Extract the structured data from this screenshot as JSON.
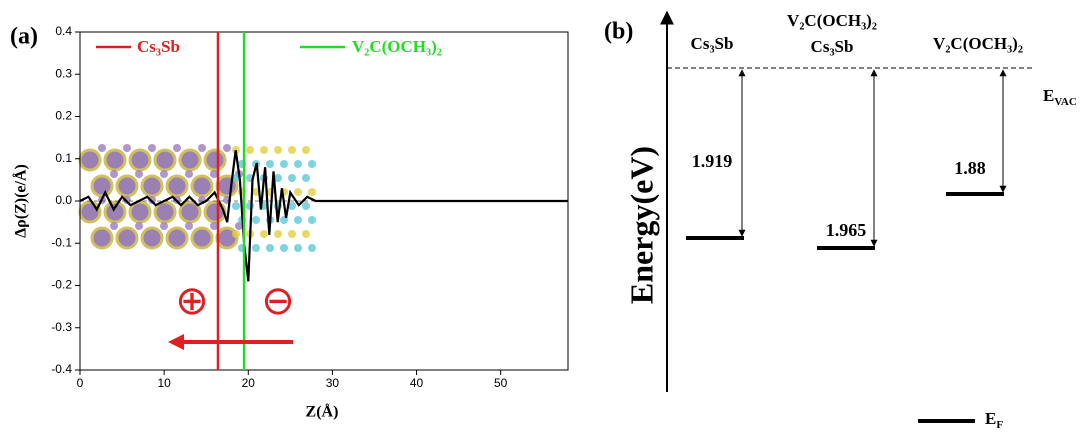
{
  "chart_data": [
    {
      "type": "line",
      "panel": "(a)",
      "xlabel": "Z(Å)",
      "ylabel": "Δρ(Z)(e/Å)",
      "x": [
        0,
        1,
        2,
        3,
        4,
        5,
        6,
        7,
        8,
        9,
        10,
        11,
        12,
        13,
        14,
        15,
        16,
        17,
        17.5,
        18,
        18.5,
        19,
        19.5,
        20,
        20.5,
        21,
        21.5,
        22,
        22.5,
        23,
        23.5,
        24,
        24.5,
        25,
        26,
        27,
        28,
        30,
        40,
        50,
        58
      ],
      "values": [
        0,
        0.01,
        -0.02,
        0.02,
        -0.02,
        0.01,
        -0.01,
        0.0,
        0.01,
        -0.01,
        0.0,
        0.01,
        -0.01,
        0.01,
        -0.01,
        0.0,
        0.02,
        -0.02,
        -0.05,
        0.04,
        0.12,
        0.05,
        -0.1,
        -0.19,
        0.05,
        0.09,
        -0.02,
        0.08,
        -0.08,
        0.07,
        -0.05,
        0.03,
        -0.04,
        0.02,
        -0.01,
        0.01,
        0,
        0,
        0,
        0,
        0
      ],
      "color": "#000000",
      "vlines": [
        {
          "name": "Cs₃Sb",
          "x": 16.4,
          "color": "#e02020"
        },
        {
          "name": "V₂C(OCH₃)₂",
          "x": 19.5,
          "color": "#22dd22"
        }
      ],
      "annotations": [
        "⊕",
        "⊖"
      ],
      "xlim": [
        0,
        58
      ],
      "xticks": [
        0,
        10,
        20,
        30,
        40,
        50
      ],
      "ylim": [
        -0.4,
        0.4
      ],
      "yticks": [
        -0.4,
        -0.3,
        -0.2,
        -0.1,
        {
          "value": 0,
          "label": "0.0"
        },
        0.1,
        0.2,
        0.3,
        0.4
      ]
    },
    {
      "type": "energy-levels",
      "panel": "(b)",
      "ylabel": "Energy(eV)",
      "levels": [
        {
          "label": [
            "Cs₃Sb"
          ],
          "value": 1.919
        },
        {
          "label": [
            "V₂C(OCH₃)₂",
            "Cs₃Sb"
          ],
          "value": 1.965
        },
        {
          "label": [
            "V₂C(OCH₃)₂"
          ],
          "value": 1.88
        }
      ],
      "vacuum_label": {
        "main": "E",
        "sub": "VAC"
      },
      "fermi_label": {
        "main": "E",
        "sub": "F"
      }
    }
  ]
}
